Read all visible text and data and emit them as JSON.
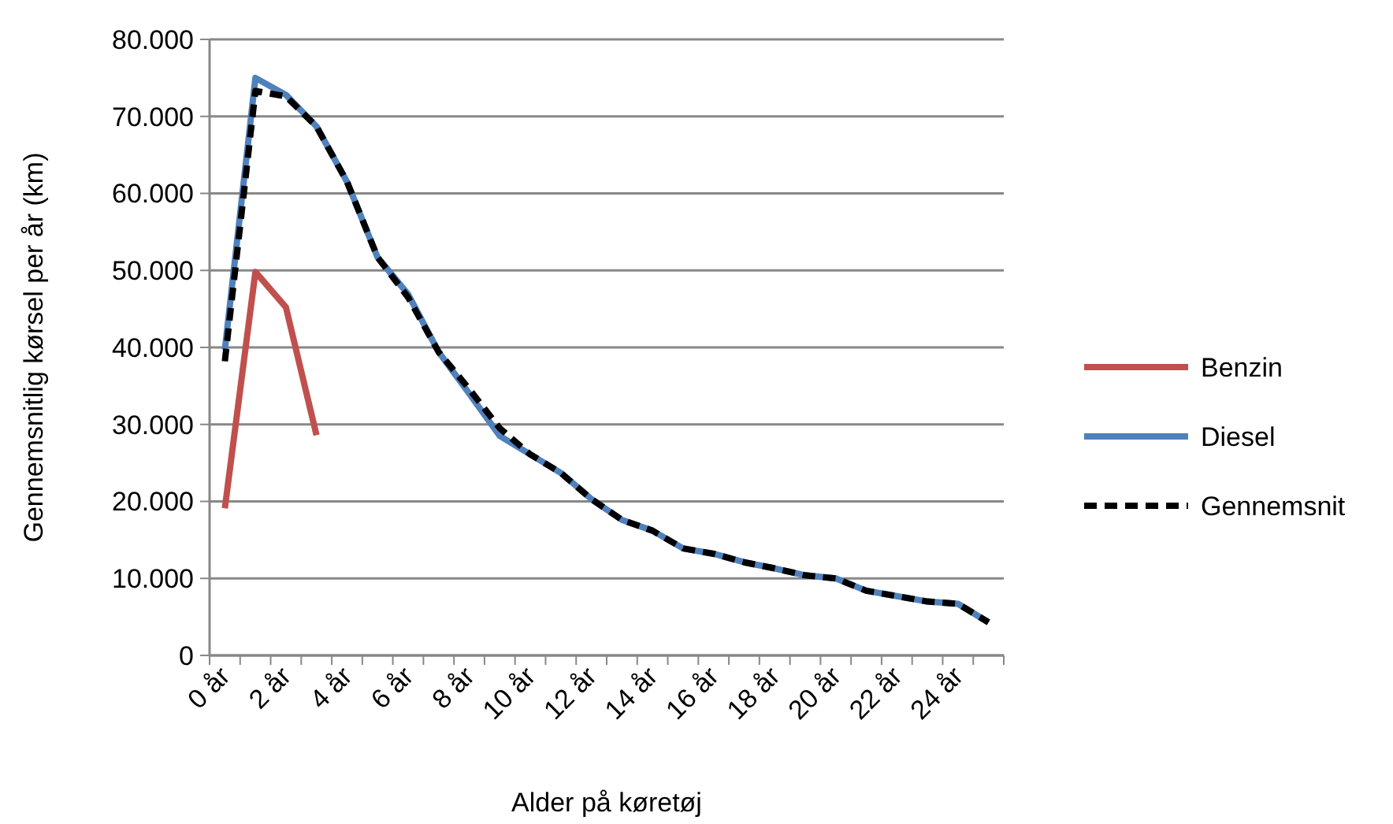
{
  "chart_data": {
    "type": "line",
    "xlabel": "Alder på køretøj",
    "ylabel": "Gennemsnitlig kørsel per år (km)",
    "categories": [
      "0 år",
      null,
      "2 år",
      null,
      "4 år",
      null,
      "6 år",
      null,
      "8 år",
      null,
      "10 år",
      null,
      "12 år",
      null,
      "14 år",
      null,
      "16 år",
      null,
      "18 år",
      null,
      "20 år",
      null,
      "22 år",
      null,
      "24 år",
      null
    ],
    "series": [
      {
        "name": "Benzin",
        "color": "#c0504d",
        "line_style": "solid",
        "values": [
          19100,
          49800,
          45200,
          28600,
          null,
          null,
          null,
          null,
          null,
          null,
          null,
          null,
          null,
          null,
          null,
          null,
          null,
          null,
          null,
          null,
          null,
          null,
          null,
          null,
          null,
          null
        ]
      },
      {
        "name": "Diesel",
        "color": "#4f81bd",
        "line_style": "solid",
        "values": [
          39700,
          75000,
          72800,
          68700,
          61500,
          51700,
          46900,
          39400,
          34000,
          28500,
          26100,
          23700,
          20300,
          17600,
          16200,
          13900,
          13200,
          12100,
          11300,
          10400,
          10000,
          8400,
          7700,
          7000,
          6700,
          4300
        ]
      },
      {
        "name": "Gennemsnit",
        "color": "#000000",
        "line_style": "dashed",
        "values": [
          38200,
          73300,
          72600,
          68700,
          61500,
          51700,
          46500,
          39400,
          34600,
          29500,
          26100,
          23700,
          20300,
          17600,
          16200,
          13900,
          13200,
          12100,
          11300,
          10400,
          10000,
          8400,
          7700,
          7000,
          6700,
          4300
        ]
      }
    ],
    "ylim": [
      0,
      80000
    ],
    "yticks": [
      {
        "value": 0,
        "label": "0"
      },
      {
        "value": 10000,
        "label": "10.000"
      },
      {
        "value": 20000,
        "label": "20.000"
      },
      {
        "value": 30000,
        "label": "30.000"
      },
      {
        "value": 40000,
        "label": "40.000"
      },
      {
        "value": 50000,
        "label": "50.000"
      },
      {
        "value": 60000,
        "label": "60.000"
      },
      {
        "value": 70000,
        "label": "70.000"
      },
      {
        "value": 80000,
        "label": "80.000"
      }
    ],
    "grid": "y",
    "legend": "right",
    "marker": "none"
  }
}
